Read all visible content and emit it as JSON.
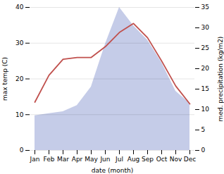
{
  "chart_data": {
    "type": "line",
    "xlabel": "date (month)",
    "ylabel": "max temp (C)",
    "y2label": "med. precipitation (kg/m2)",
    "categories": [
      "Jan",
      "Feb",
      "Mar",
      "Apr",
      "May",
      "Jun",
      "Jul",
      "Aug",
      "Sep",
      "Oct",
      "Nov",
      "Dec"
    ],
    "series": [
      {
        "type": "area",
        "axis": "y2",
        "color": "#c5cce8",
        "values": [
          8.5,
          9.0,
          9.5,
          11.0,
          15.5,
          26.0,
          35.0,
          30.5,
          27.0,
          21.5,
          14.5,
          11.5
        ]
      },
      {
        "type": "line",
        "color": "#c0504d",
        "values": [
          13.5,
          21.0,
          25.5,
          26.0,
          26.0,
          29.0,
          33.0,
          35.5,
          31.5,
          25.0,
          18.0,
          13.0
        ]
      }
    ],
    "ylim": [
      0,
      40
    ],
    "yticks": [
      0,
      10,
      20,
      30,
      40
    ],
    "y2lim": [
      0,
      35
    ],
    "y2ticks": [
      0,
      5,
      10,
      15,
      20,
      25,
      30,
      35
    ],
    "grid": true
  }
}
